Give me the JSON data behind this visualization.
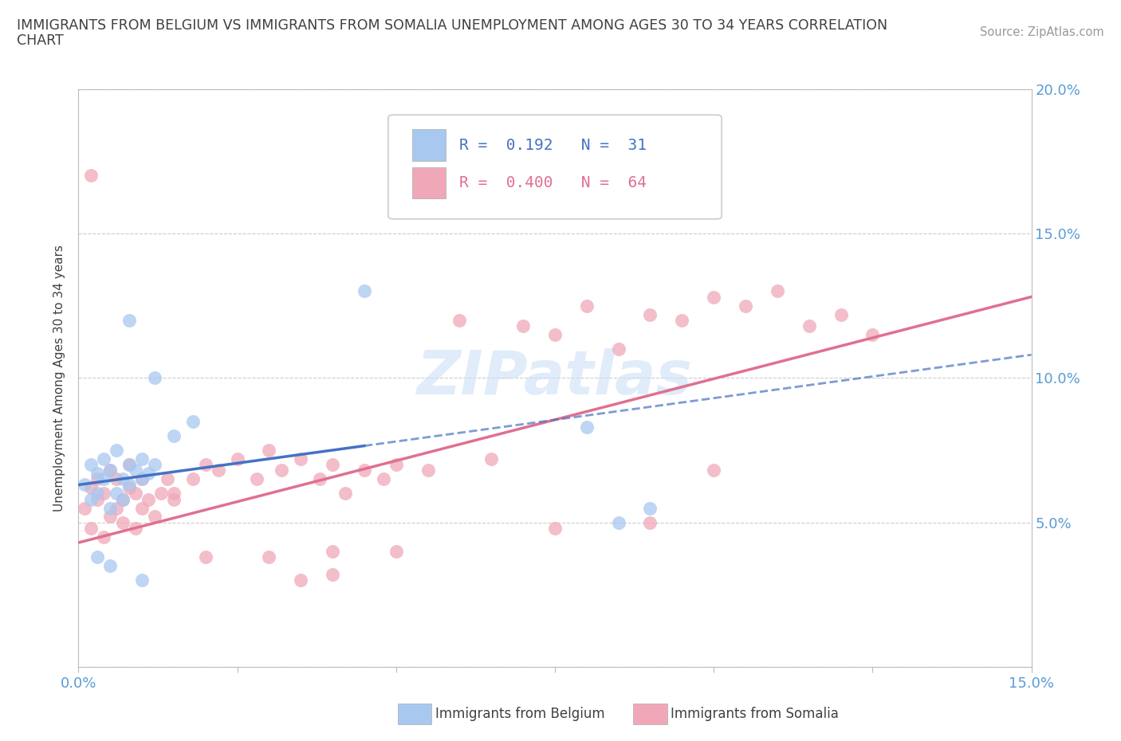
{
  "title_line1": "IMMIGRANTS FROM BELGIUM VS IMMIGRANTS FROM SOMALIA UNEMPLOYMENT AMONG AGES 30 TO 34 YEARS CORRELATION",
  "title_line2": "CHART",
  "source_text": "Source: ZipAtlas.com",
  "ylabel": "Unemployment Among Ages 30 to 34 years",
  "xlim": [
    0,
    0.15
  ],
  "ylim": [
    0,
    0.2
  ],
  "belgium_color": "#a8c8f0",
  "somalia_color": "#f0a8b8",
  "belgium_line_color": "#4472c4",
  "somalia_line_color": "#e07090",
  "belgium_R": 0.192,
  "belgium_N": 31,
  "somalia_R": 0.4,
  "somalia_N": 64,
  "watermark": "ZIPatlas",
  "background_color": "#ffffff",
  "grid_color": "#cccccc",
  "tick_label_color": "#5b9bd5",
  "title_color": "#404040",
  "ylabel_color": "#404040",
  "source_color": "#999999",
  "legend_text_belgium_color": "#4472c4",
  "legend_text_somalia_color": "#e07090",
  "bottom_legend_label_color": "#404040"
}
